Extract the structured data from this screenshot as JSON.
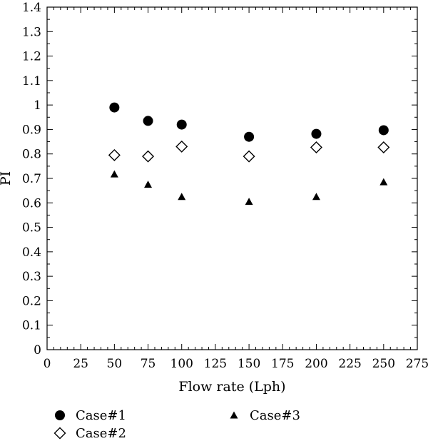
{
  "chart_data": {
    "type": "scatter",
    "title": "",
    "xlabel": "Flow rate (Lph)",
    "ylabel": "PI",
    "xlim": [
      0,
      275
    ],
    "ylim": [
      0,
      1.4
    ],
    "x_ticks": [
      "0",
      "25",
      "50",
      "75",
      "100",
      "125",
      "150",
      "175",
      "200",
      "225",
      "250",
      "275"
    ],
    "y_ticks": [
      "0",
      "0.1",
      "0.2",
      "0.3",
      "0.4",
      "0.5",
      "0.6",
      "0.7",
      "0.8",
      "0.9",
      "1",
      "1.1",
      "1.2",
      "1.3",
      "1.4"
    ],
    "grid": false,
    "legend_position": "bottom",
    "x": [
      50,
      75,
      100,
      150,
      200,
      250
    ],
    "series": [
      {
        "name": "Case#1",
        "marker": "filled-circle",
        "color": "#000000",
        "values": [
          0.99,
          0.935,
          0.92,
          0.87,
          0.882,
          0.897
        ]
      },
      {
        "name": "Case#2",
        "marker": "open-diamond",
        "color": "#000000",
        "values": [
          0.795,
          0.79,
          0.83,
          0.79,
          0.827,
          0.827
        ]
      },
      {
        "name": "Case#3",
        "marker": "filled-triangle",
        "color": "#000000",
        "values": [
          0.717,
          0.675,
          0.625,
          0.605,
          0.625,
          0.685
        ]
      }
    ]
  }
}
